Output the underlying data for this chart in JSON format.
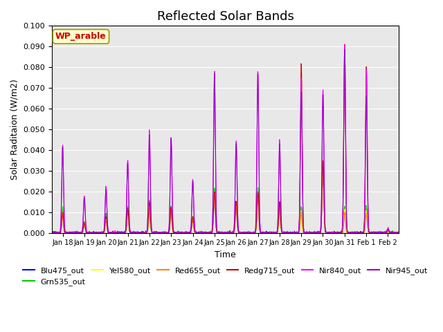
{
  "title": "Reflected Solar Bands",
  "xlabel": "Time",
  "ylabel": "Solar Raditaion (W/m2)",
  "annotation": "WP_arable",
  "ylim": [
    0,
    0.1
  ],
  "yticks": [
    0.0,
    0.01,
    0.02,
    0.03,
    0.04,
    0.05,
    0.06,
    0.07,
    0.08,
    0.09,
    0.1
  ],
  "xtick_labels": [
    "Jan 18",
    "Jan 19",
    "Jan 20",
    "Jan 21",
    "Jan 22",
    "Jan 23",
    "Jan 24",
    "Jan 25",
    "Jan 26",
    "Jan 27",
    "Jan 28",
    "Jan 29",
    "Jan 30",
    "Jan 31",
    "Feb 1",
    "Feb 2"
  ],
  "legend_entries": [
    "Blu475_out",
    "Grn535_out",
    "Yel580_out",
    "Red655_out",
    "Redg715_out",
    "Nir840_out",
    "Nir945_out"
  ],
  "line_colors": {
    "Blu475_out": "#0000ff",
    "Grn535_out": "#00cc00",
    "Yel580_out": "#ffff00",
    "Red655_out": "#ff8800",
    "Redg715_out": "#cc0000",
    "Nir840_out": "#ff00ff",
    "Nir945_out": "#9900cc"
  },
  "background_color": "#e8e8e8",
  "annotation_bg": "#ffffcc",
  "annotation_border": "#999900",
  "annotation_text_color": "#cc0000",
  "title_fontsize": 13,
  "axis_fontsize": 9,
  "num_points": 1152,
  "days": 16,
  "peak_heights_nir840": [
    0.043,
    0.018,
    0.022,
    0.035,
    0.05,
    0.047,
    0.026,
    0.079,
    0.045,
    0.079,
    0.045,
    0.076,
    0.07,
    0.092,
    0.08,
    0.002
  ],
  "peak_heights_nir945": [
    0.042,
    0.017,
    0.021,
    0.034,
    0.048,
    0.046,
    0.025,
    0.078,
    0.044,
    0.078,
    0.044,
    0.069,
    0.068,
    0.09,
    0.067,
    0.002
  ],
  "peak_heights_redg715": [
    0.01,
    0.005,
    0.008,
    0.012,
    0.015,
    0.012,
    0.008,
    0.02,
    0.015,
    0.02,
    0.015,
    0.083,
    0.035,
    0.092,
    0.081,
    0.002
  ],
  "peak_heights_red655": [
    0.008,
    0.004,
    0.006,
    0.01,
    0.012,
    0.01,
    0.006,
    0.018,
    0.012,
    0.018,
    0.012,
    0.01,
    0.03,
    0.01,
    0.01,
    0.001
  ],
  "peak_heights_yel580": [
    0.01,
    0.004,
    0.007,
    0.011,
    0.013,
    0.011,
    0.007,
    0.019,
    0.013,
    0.019,
    0.013,
    0.011,
    0.031,
    0.011,
    0.011,
    0.001
  ],
  "peak_heights_grn535": [
    0.012,
    0.005,
    0.009,
    0.013,
    0.016,
    0.013,
    0.008,
    0.022,
    0.015,
    0.022,
    0.015,
    0.013,
    0.033,
    0.013,
    0.013,
    0.001
  ],
  "peak_heights_blu475": [
    0.01,
    0.004,
    0.008,
    0.011,
    0.011,
    0.011,
    0.007,
    0.019,
    0.013,
    0.019,
    0.013,
    0.011,
    0.03,
    0.011,
    0.011,
    0.001
  ]
}
